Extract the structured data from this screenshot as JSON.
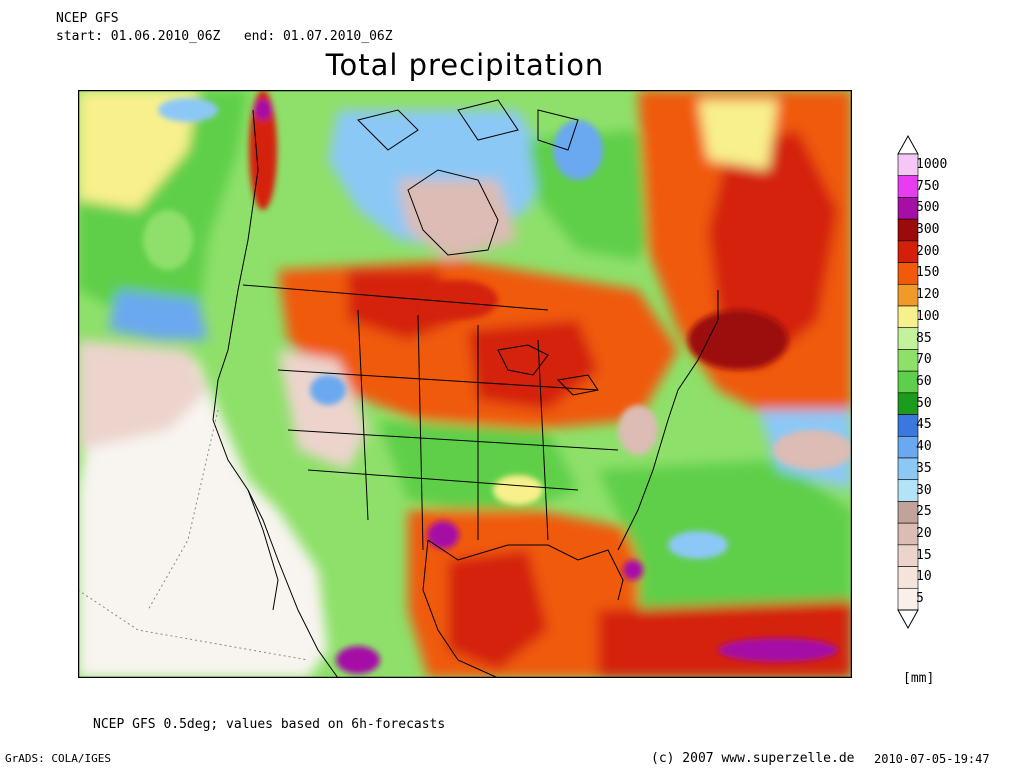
{
  "header": {
    "model": "NCEP GFS",
    "period": "start: 01.06.2010_06Z   end: 01.07.2010_06Z",
    "title": "Total precipitation"
  },
  "legend": {
    "unit": "[mm]",
    "levels": [
      "1000",
      "750",
      "500",
      "300",
      "200",
      "150",
      "120",
      "100",
      "85",
      "70",
      "60",
      "50",
      "45",
      "40",
      "35",
      "30",
      "25",
      "20",
      "15",
      "10",
      "5"
    ],
    "colors": [
      "#f6c6f6",
      "#e83cf0",
      "#a60fa6",
      "#9c0a0a",
      "#d4200a",
      "#f05a0a",
      "#f09a2a",
      "#f8f08c",
      "#c2f29c",
      "#8ee06a",
      "#5ecf4a",
      "#1c9c1c",
      "#3a78e0",
      "#6aa8f0",
      "#8cc8f6",
      "#b4e2f6",
      "#c0a49c",
      "#dcbcb4",
      "#ecd4cc",
      "#f4e4dc",
      "#faf0ea"
    ]
  },
  "footer": {
    "note": "NCEP GFS 0.5deg; values based on 6h-forecasts",
    "grads": "GrADS: COLA/IGES",
    "copyright": "(c) 2007 www.superzelle.de",
    "timestamp": "2010-07-05-19:47"
  }
}
